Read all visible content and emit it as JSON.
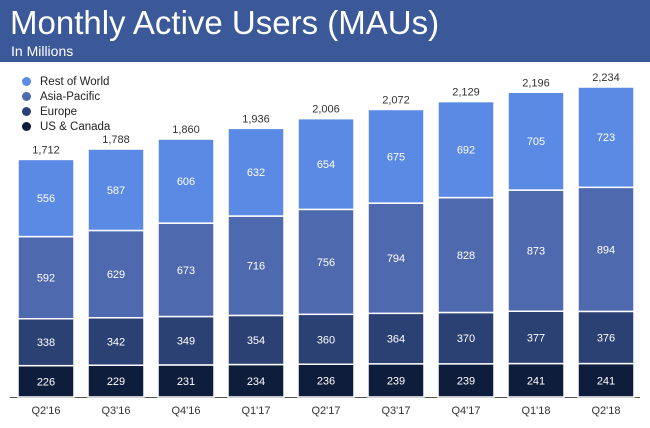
{
  "header": {
    "title": "Monthly Active Users (MAUs)",
    "subtitle": "In Millions",
    "background": "#3b5998"
  },
  "chart_data": {
    "type": "bar",
    "stacked": true,
    "categories": [
      "Q2'16",
      "Q3'16",
      "Q4'16",
      "Q1'17",
      "Q2'17",
      "Q3'17",
      "Q4'17",
      "Q1'18",
      "Q2'18"
    ],
    "totals": [
      "1,712",
      "1,788",
      "1,860",
      "1,936",
      "2,006",
      "2,072",
      "2,129",
      "2,196",
      "2,234"
    ],
    "series": [
      {
        "name": "US & Canada",
        "color": "#0f1d3d",
        "values": [
          226,
          229,
          231,
          234,
          236,
          239,
          239,
          241,
          241
        ]
      },
      {
        "name": "Europe",
        "color": "#2c4173",
        "values": [
          338,
          342,
          349,
          354,
          360,
          364,
          370,
          377,
          376
        ]
      },
      {
        "name": "Asia-Pacific",
        "color": "#4e69ad",
        "values": [
          592,
          629,
          673,
          716,
          756,
          794,
          828,
          873,
          894
        ]
      },
      {
        "name": "Rest of World",
        "color": "#5b8ae4",
        "values": [
          556,
          587,
          606,
          632,
          654,
          675,
          692,
          705,
          723
        ]
      }
    ],
    "legend": [
      "Rest of World",
      "Asia-Pacific",
      "Europe",
      "US & Canada"
    ],
    "legend_position": "top-left",
    "ylim": [
      0,
      2234
    ],
    "grid": false
  }
}
